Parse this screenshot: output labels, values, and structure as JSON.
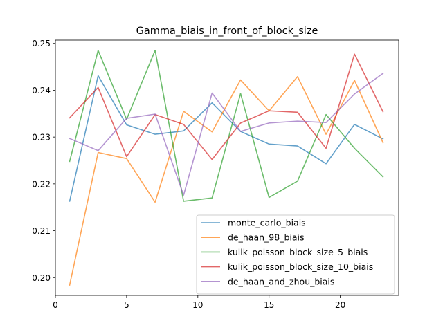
{
  "chart_data": {
    "type": "line",
    "title": "Gamma_biais_in_front_of_block_size",
    "xlabel": "",
    "ylabel": "",
    "xlim": [
      0,
      24.1
    ],
    "ylim": [
      0.1962,
      0.2507
    ],
    "xticks": [
      0,
      5,
      10,
      15,
      20
    ],
    "yticks": [
      0.2,
      0.21,
      0.22,
      0.23,
      0.24,
      0.25
    ],
    "xtick_labels": [
      "0",
      "5",
      "10",
      "15",
      "20"
    ],
    "ytick_labels": [
      "0.20",
      "0.21",
      "0.22",
      "0.23",
      "0.24",
      "0.25"
    ],
    "legend_position": "lower-right",
    "grid": false,
    "x": [
      1,
      3,
      5,
      7,
      9,
      11,
      13,
      15,
      17,
      19,
      21,
      23
    ],
    "series": [
      {
        "name": "monte_carlo_biais",
        "color": "#1f77b4",
        "values": [
          0.2163,
          0.2431,
          0.2326,
          0.2306,
          0.2313,
          0.2373,
          0.2312,
          0.2285,
          0.2281,
          0.2243,
          0.2327,
          0.2296
        ]
      },
      {
        "name": "de_haan_98_biais",
        "color": "#ff7f0e",
        "values": [
          0.1984,
          0.2267,
          0.2254,
          0.2161,
          0.2355,
          0.2311,
          0.2422,
          0.2356,
          0.2429,
          0.2306,
          0.2421,
          0.2288
        ]
      },
      {
        "name": "kulik_poisson_block_size_5_biais",
        "color": "#2ca02c",
        "values": [
          0.2248,
          0.2485,
          0.2338,
          0.2485,
          0.2163,
          0.217,
          0.2393,
          0.2171,
          0.2206,
          0.2348,
          0.2276,
          0.2215
        ]
      },
      {
        "name": "kulik_poisson_block_size_10_biais",
        "color": "#d62728",
        "values": [
          0.2341,
          0.2406,
          0.2258,
          0.2348,
          0.2327,
          0.2252,
          0.233,
          0.2356,
          0.2353,
          0.2276,
          0.2477,
          0.2354
        ]
      },
      {
        "name": "de_haan_and_zhou_biais",
        "color": "#9467bd",
        "values": [
          0.2297,
          0.2271,
          0.234,
          0.2349,
          0.2176,
          0.2394,
          0.2312,
          0.233,
          0.2334,
          0.2331,
          0.2392,
          0.2436
        ]
      }
    ]
  }
}
